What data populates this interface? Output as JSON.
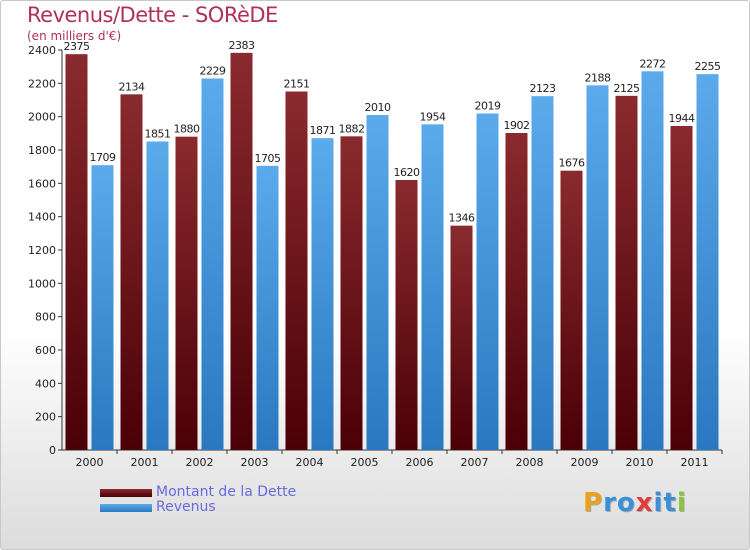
{
  "title": "Revenus/Dette - SORèDE",
  "subtitle": "(en milliers d'€)",
  "logo": {
    "letters": [
      "P",
      "r",
      "o",
      "x",
      "i",
      "t",
      "i"
    ],
    "colors": [
      "#e8a21e",
      "#3a8fd8",
      "#3a8fd8",
      "#e03a3a",
      "#3a8fd8",
      "#3a8fd8",
      "#8ac43a"
    ]
  },
  "chart_data": {
    "type": "bar",
    "categories": [
      "2000",
      "2001",
      "2002",
      "2003",
      "2004",
      "2005",
      "2006",
      "2007",
      "2008",
      "2009",
      "2010",
      "2011"
    ],
    "series": [
      {
        "name": "Montant de la Dette",
        "values": [
          2375,
          2134,
          1880,
          2383,
          2151,
          1882,
          1620,
          1346,
          1902,
          1676,
          2125,
          1944
        ],
        "color": "#7a1a1e"
      },
      {
        "name": "Revenus",
        "values": [
          1709,
          1851,
          2229,
          1705,
          1871,
          2010,
          1954,
          2019,
          2123,
          2188,
          2272,
          2255
        ],
        "color": "#3a90d8"
      }
    ],
    "yticks": [
      0,
      200,
      400,
      600,
      800,
      1000,
      1200,
      1400,
      1600,
      1800,
      2000,
      2200,
      2400
    ],
    "ylim": [
      0,
      2400
    ],
    "grid": false,
    "legend": "bottom-left"
  }
}
